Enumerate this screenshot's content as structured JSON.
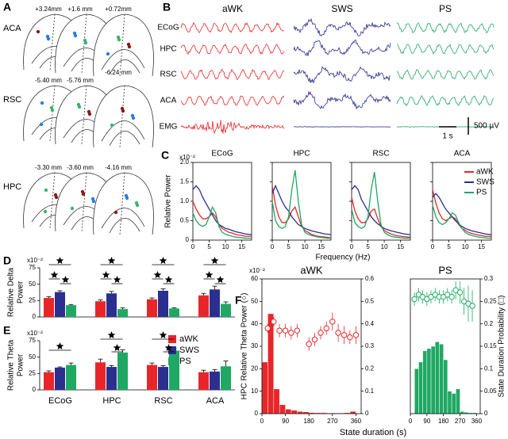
{
  "panel_labels": [
    "A",
    "B",
    "C",
    "D",
    "E",
    "F"
  ],
  "atlas": {
    "regions": [
      {
        "label": "ACA",
        "sections": [
          "+3.24mm",
          "+1.6 mm",
          "+0.72mm"
        ]
      },
      {
        "label": "RSC",
        "sections": [
          "-5.40 mm",
          "-5.76 mm",
          "-6.24 mm"
        ]
      },
      {
        "label": "HPC",
        "sections": [
          "-3.30 mm",
          "-3.60 mm",
          "-4.16 mm"
        ]
      }
    ]
  },
  "traces": {
    "states": [
      "aWK",
      "SWS",
      "PS"
    ],
    "channels": [
      "ECoG",
      "HPC",
      "RSC",
      "ACA",
      "EMG"
    ],
    "time_scale": "1 s",
    "voltage_scale": "500 µV"
  },
  "chart_data": [
    {
      "type": "line",
      "multiplier": "x10⁻²",
      "ylabel": "Relative Power",
      "xlabel": "Frequency (Hz)",
      "legend": "upper right",
      "xlim": [
        0,
        18
      ],
      "xticks": [
        0,
        5,
        10,
        15
      ],
      "ylim": [
        0,
        2
      ],
      "yticks": [
        0,
        0.5,
        {
          "value": 1,
          "label": "1.0"
        },
        1.5,
        {
          "value": 2,
          "label": "2.0"
        }
      ],
      "x": [
        0,
        1,
        2,
        3,
        4,
        5,
        6,
        7,
        8,
        9,
        10,
        11,
        12,
        13,
        14,
        15,
        16,
        17,
        18
      ],
      "series": [
        {
          "name": "aWK",
          "color": "#e8262a"
        },
        {
          "name": "SWS",
          "color": "#2b2f8f"
        },
        {
          "name": "PS",
          "color": "#1fa864"
        }
      ],
      "panels": [
        {
          "title": "ECoG",
          "values": [
            [
              1.0,
              0.8,
              0.65,
              0.55,
              0.55,
              0.6,
              0.7,
              0.6,
              0.4,
              0.3,
              0.25,
              0.2,
              0.18,
              0.15,
              0.13,
              0.12,
              0.1,
              0.1,
              0.1
            ],
            [
              1.3,
              1.4,
              1.3,
              1.1,
              0.95,
              0.8,
              0.65,
              0.5,
              0.4,
              0.35,
              0.3,
              0.28,
              0.25,
              0.22,
              0.2,
              0.18,
              0.16,
              0.15,
              0.14
            ],
            [
              0.7,
              0.5,
              0.4,
              0.35,
              0.4,
              0.6,
              0.85,
              0.7,
              0.35,
              0.2,
              0.15,
              0.12,
              0.1,
              0.08,
              0.07,
              0.06,
              0.05,
              0.05,
              0.05
            ]
          ]
        },
        {
          "title": "HPC",
          "values": [
            [
              1.4,
              0.9,
              0.6,
              0.45,
              0.45,
              0.55,
              0.75,
              0.85,
              0.6,
              0.35,
              0.25,
              0.2,
              0.15,
              0.12,
              0.1,
              0.09,
              0.08,
              0.07,
              0.06
            ],
            [
              1.2,
              1.4,
              1.2,
              1.0,
              0.85,
              0.75,
              0.6,
              0.5,
              0.4,
              0.35,
              0.3,
              0.27,
              0.24,
              0.22,
              0.2,
              0.18,
              0.16,
              0.15,
              0.14
            ],
            [
              1.0,
              0.5,
              0.35,
              0.3,
              0.35,
              0.6,
              1.3,
              1.8,
              1.0,
              0.4,
              0.2,
              0.15,
              0.12,
              0.1,
              0.08,
              0.07,
              0.06,
              0.05,
              0.05
            ]
          ]
        },
        {
          "title": "RSC",
          "values": [
            [
              1.1,
              0.75,
              0.55,
              0.45,
              0.45,
              0.55,
              0.75,
              0.8,
              0.55,
              0.35,
              0.25,
              0.2,
              0.16,
              0.13,
              0.11,
              0.1,
              0.09,
              0.08,
              0.07
            ],
            [
              1.3,
              1.4,
              1.3,
              1.05,
              0.9,
              0.75,
              0.6,
              0.5,
              0.42,
              0.36,
              0.3,
              0.27,
              0.24,
              0.22,
              0.2,
              0.18,
              0.16,
              0.15,
              0.14
            ],
            [
              0.8,
              0.45,
              0.35,
              0.3,
              0.35,
              0.6,
              1.3,
              1.75,
              1.0,
              0.4,
              0.2,
              0.14,
              0.1,
              0.08,
              0.07,
              0.06,
              0.05,
              0.05,
              0.05
            ]
          ]
        },
        {
          "title": "ACA",
          "values": [
            [
              1.3,
              0.95,
              0.7,
              0.55,
              0.5,
              0.55,
              0.6,
              0.55,
              0.4,
              0.3,
              0.25,
              0.2,
              0.17,
              0.15,
              0.13,
              0.12,
              0.1,
              0.1,
              0.09
            ],
            [
              1.1,
              1.2,
              1.1,
              0.95,
              0.8,
              0.7,
              0.6,
              0.5,
              0.42,
              0.35,
              0.3,
              0.27,
              0.24,
              0.22,
              0.2,
              0.18,
              0.16,
              0.15,
              0.14
            ],
            [
              0.9,
              0.6,
              0.45,
              0.4,
              0.45,
              0.55,
              0.7,
              0.65,
              0.45,
              0.3,
              0.2,
              0.15,
              0.12,
              0.1,
              0.08,
              0.07,
              0.06,
              0.05,
              0.05
            ]
          ]
        }
      ]
    },
    {
      "type": "bar",
      "multiplier": "x10⁻²",
      "ylabel": [
        "Relative Delta",
        "Power"
      ],
      "ylim": [
        0,
        75
      ],
      "yticks": [
        0,
        25,
        50,
        75
      ],
      "series": [
        {
          "color": "#e8262a",
          "values": [
            29,
            24,
            27,
            33
          ],
          "errors": [
            2,
            2,
            2,
            3
          ]
        },
        {
          "color": "#2b2f8f",
          "values": [
            38,
            36,
            40,
            42
          ],
          "errors": [
            2,
            3,
            3,
            5
          ]
        },
        {
          "color": "#1fa864",
          "values": [
            18,
            12,
            13,
            20
          ],
          "errors": [
            1,
            2,
            1,
            3
          ]
        }
      ]
    },
    {
      "type": "bar",
      "multiplier": "x10⁻²",
      "ylabel": [
        "Relative Theta",
        "Power"
      ],
      "ylim": [
        0,
        75
      ],
      "yticks": [
        0,
        25,
        50,
        75
      ],
      "categories": [
        "ECoG",
        "HPC",
        "RSC",
        "ACA"
      ],
      "legend": "left",
      "series": [
        {
          "name": "aWK",
          "color": "#e8262a",
          "values": [
            27,
            42,
            38,
            27
          ],
          "errors": [
            2,
            5,
            3,
            3
          ]
        },
        {
          "name": "SWS",
          "color": "#2b2f8f",
          "values": [
            34,
            35,
            35,
            28
          ],
          "errors": [
            1,
            2,
            2,
            3
          ]
        },
        {
          "name": "PS",
          "color": "#1fa864",
          "values": [
            38,
            57,
            60,
            36
          ],
          "errors": [
            3,
            4,
            3,
            8
          ]
        }
      ]
    },
    {
      "type": "combo",
      "title": "aWK",
      "multiplier": "x10⁻²",
      "ylabel": "HPC Relative Theta Power (○)",
      "xlabel": "State duration (s)",
      "color": "#e8262a",
      "xlim": [
        0,
        380
      ],
      "xticks": [
        0,
        90,
        180,
        270,
        360
      ],
      "ylim": [
        0,
        60
      ],
      "yticks": [
        0,
        10,
        20,
        30,
        40,
        50,
        60
      ],
      "y2lim": [
        0,
        0.6
      ],
      "y2ticks": [
        0,
        0.1,
        0.2,
        0.3,
        0.4,
        0.5,
        0.6
      ],
      "bins": [
        0,
        22.5,
        45,
        67.5,
        90,
        112.5,
        135,
        157.5,
        180,
        202.5,
        225,
        247.5,
        270,
        292.5,
        315,
        337.5,
        360
      ],
      "counts": [
        0.23,
        0.445,
        0.11,
        0.04,
        0.02,
        0.015,
        0.01,
        0.008,
        0.005,
        0.004,
        0.004,
        0.003,
        0.003,
        0.003,
        0.004,
        0.01
      ],
      "points": {
        "x": [
          22,
          45,
          67,
          90,
          112,
          135,
          180,
          202,
          225,
          247,
          270,
          292,
          315,
          337,
          360
        ],
        "values": [
          38,
          41,
          37,
          37,
          36,
          37,
          31,
          33,
          36,
          38,
          41,
          36,
          35,
          34,
          35
        ],
        "errors": [
          2,
          2,
          3,
          3,
          3,
          3,
          3,
          3,
          3,
          3,
          4,
          4,
          4,
          3,
          4
        ]
      }
    },
    {
      "type": "combo",
      "title": "PS",
      "y2label": "State Duration Probability (□)",
      "color": "#1fa864",
      "xlim": [
        0,
        380
      ],
      "xticks": [
        0,
        90,
        180,
        270,
        360
      ],
      "ylim": [
        0,
        60
      ],
      "y2lim": [
        0,
        0.3
      ],
      "y2ticks": [
        0,
        0.05,
        0.1,
        0.15,
        0.2,
        0.25,
        0.3
      ],
      "bins": [
        0,
        22.5,
        45,
        67.5,
        90,
        112.5,
        135,
        157.5,
        180,
        202.5,
        225,
        247.5,
        270,
        292.5,
        315,
        337.5,
        360
      ],
      "counts": [
        0,
        0.1,
        0.115,
        0.14,
        0.145,
        0.15,
        0.16,
        0.155,
        0.12,
        0.05,
        0.045,
        0.055,
        0.005,
        0.003,
        0.002,
        0.002
      ],
      "points": {
        "x": [
          22,
          45,
          67,
          90,
          112,
          135,
          157,
          180,
          202,
          225,
          247,
          270,
          292,
          315,
          337
        ],
        "values": [
          51,
          53,
          52,
          51,
          52,
          53,
          52,
          52,
          53,
          52,
          55,
          54,
          50,
          49,
          48
        ],
        "errors": [
          3,
          3,
          3,
          3,
          3,
          3,
          3,
          3,
          3,
          3,
          4,
          5,
          6,
          8,
          7
        ]
      }
    }
  ]
}
